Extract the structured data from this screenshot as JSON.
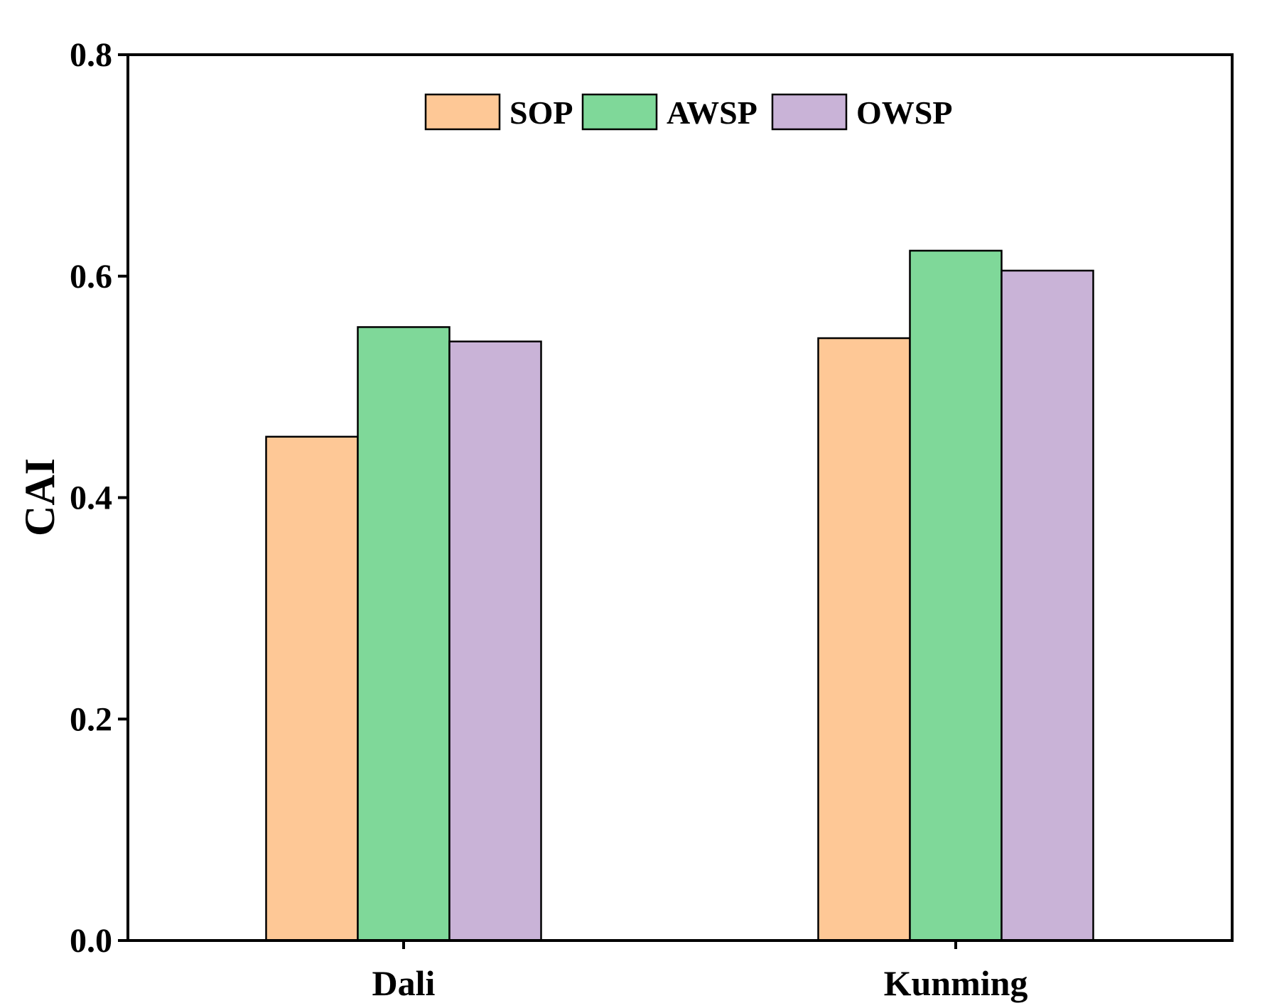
{
  "chart_data": {
    "type": "bar",
    "categories": [
      "Dali",
      "Kunming"
    ],
    "series": [
      {
        "name": "SOP",
        "color": "#FEC896",
        "values": [
          0.455,
          0.544
        ]
      },
      {
        "name": "AWSP",
        "color": "#7FD899",
        "values": [
          0.554,
          0.623
        ]
      },
      {
        "name": "OWSP",
        "color": "#C9B3D7",
        "values": [
          0.541,
          0.605
        ]
      }
    ],
    "ylabel": "CAI",
    "xlabel": "",
    "ylim": [
      0,
      0.8
    ],
    "yticks": [
      "0.0",
      "0.2",
      "0.4",
      "0.6",
      "0.8"
    ],
    "legend_position": "top-center",
    "grid": false
  }
}
